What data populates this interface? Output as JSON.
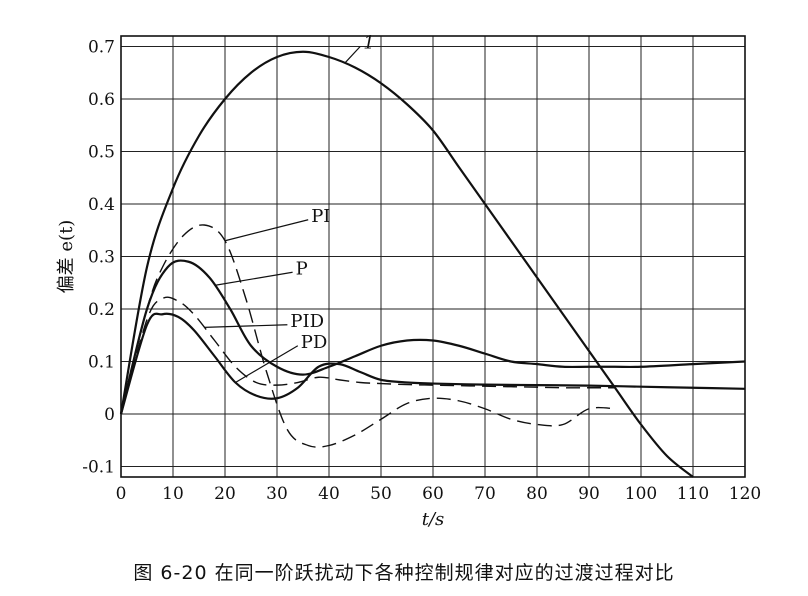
{
  "chart_data": {
    "type": "line",
    "caption": "图 6-20   在同一阶跃扰动下各种控制规律对应的过渡过程对比",
    "xlabel": "t/s",
    "ylabel": "偏差 e(t)",
    "xlim": [
      0,
      120
    ],
    "ylim": [
      -0.12,
      0.72
    ],
    "xticks": [
      0,
      10,
      20,
      30,
      40,
      50,
      60,
      70,
      80,
      90,
      100,
      110,
      120
    ],
    "yticks": [
      -0.1,
      0,
      0.1,
      0.2,
      0.3,
      0.4,
      0.5,
      0.6,
      0.7
    ],
    "ytick_labels": [
      "-0.1",
      "0",
      "0.1",
      "0.2",
      "0.3",
      "0.4",
      "0.5",
      "0.6",
      "0.7"
    ],
    "grid": true,
    "series": [
      {
        "name": "1",
        "style": "solid",
        "x": [
          0,
          5,
          10,
          15,
          20,
          25,
          30,
          35,
          40,
          45,
          50,
          55,
          60,
          65,
          70,
          75,
          80,
          85,
          90,
          95,
          100,
          105,
          110
        ],
        "y": [
          0,
          0.28,
          0.43,
          0.53,
          0.6,
          0.65,
          0.68,
          0.69,
          0.68,
          0.66,
          0.63,
          0.59,
          0.54,
          0.47,
          0.4,
          0.33,
          0.26,
          0.19,
          0.12,
          0.05,
          -0.02,
          -0.08,
          -0.12
        ]
      },
      {
        "name": "PI",
        "style": "dashed",
        "x": [
          0,
          5,
          8,
          12,
          16,
          20,
          24,
          28,
          32,
          36,
          40,
          45,
          50,
          55,
          60,
          65,
          70,
          75,
          80,
          85,
          90,
          95
        ],
        "y": [
          0,
          0.2,
          0.28,
          0.34,
          0.36,
          0.33,
          0.22,
          0.08,
          -0.03,
          -0.06,
          -0.06,
          -0.04,
          -0.01,
          0.02,
          0.03,
          0.025,
          0.01,
          -0.01,
          -0.02,
          -0.02,
          0.01,
          0.01
        ]
      },
      {
        "name": "P",
        "style": "solid",
        "x": [
          0,
          5,
          9,
          13,
          17,
          21,
          25,
          30,
          35,
          40,
          45,
          50,
          55,
          60,
          65,
          70,
          75,
          80,
          85,
          90,
          95,
          100,
          110,
          120
        ],
        "y": [
          0,
          0.2,
          0.28,
          0.29,
          0.26,
          0.2,
          0.13,
          0.09,
          0.075,
          0.09,
          0.11,
          0.13,
          0.14,
          0.14,
          0.13,
          0.115,
          0.1,
          0.095,
          0.09,
          0.09,
          0.09,
          0.09,
          0.095,
          0.1
        ]
      },
      {
        "name": "PID",
        "style": "dashed",
        "x": [
          0,
          5,
          8,
          11,
          14,
          18,
          22,
          26,
          30,
          34,
          38,
          42,
          46,
          50,
          55,
          60,
          65,
          70,
          75,
          80,
          85,
          90,
          95
        ],
        "y": [
          0,
          0.18,
          0.22,
          0.215,
          0.19,
          0.14,
          0.09,
          0.06,
          0.055,
          0.06,
          0.07,
          0.065,
          0.06,
          0.058,
          0.056,
          0.055,
          0.054,
          0.053,
          0.052,
          0.051,
          0.05,
          0.05,
          0.05
        ]
      },
      {
        "name": "PD",
        "style": "solid",
        "x": [
          0,
          5,
          8,
          11,
          14,
          18,
          22,
          26,
          30,
          34,
          38,
          42,
          46,
          50,
          55,
          60,
          70,
          80,
          90,
          100,
          110,
          120
        ],
        "y": [
          0,
          0.17,
          0.19,
          0.185,
          0.16,
          0.11,
          0.06,
          0.035,
          0.03,
          0.05,
          0.09,
          0.095,
          0.08,
          0.065,
          0.06,
          0.058,
          0.056,
          0.055,
          0.054,
          0.052,
          0.05,
          0.048
        ]
      }
    ],
    "annotations": [
      {
        "text": "1",
        "series": "1",
        "at_x": 43
      },
      {
        "text": "PI",
        "series": "PI",
        "at_x": 20
      },
      {
        "text": "P",
        "series": "P",
        "at_x": 18
      },
      {
        "text": "PID",
        "series": "PID",
        "at_x": 16
      },
      {
        "text": "PD",
        "series": "PD",
        "at_x": 22
      }
    ]
  }
}
